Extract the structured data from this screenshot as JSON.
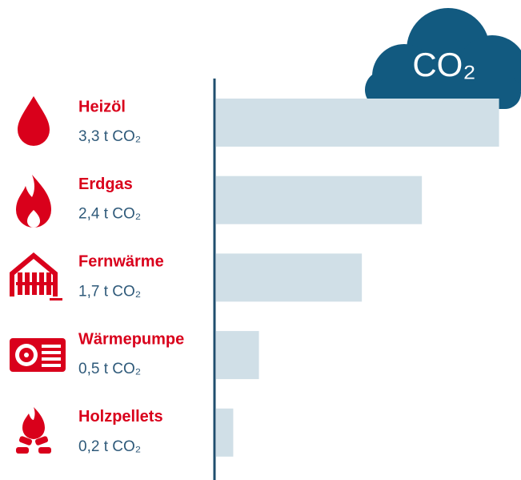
{
  "chart_data": {
    "type": "bar",
    "orientation": "horizontal",
    "annotation": "CO₂",
    "categories": [
      "Heizöl",
      "Erdgas",
      "Fernwärme",
      "Wärmepumpe",
      "Holzpellets"
    ],
    "values": [
      3.3,
      2.4,
      1.7,
      0.5,
      0.2
    ],
    "value_labels": [
      "3,3 t CO₂",
      "2,4 t CO₂",
      "1,7 t CO₂",
      "0,5 t CO₂",
      "0,2 t CO₂"
    ],
    "color": "#d0dfe7",
    "xlim": [
      0,
      3.5
    ]
  }
}
